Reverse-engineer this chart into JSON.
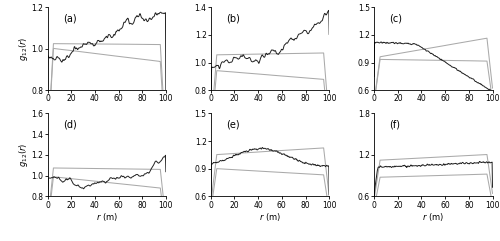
{
  "subplots": [
    {
      "label": "(a)",
      "ylim": [
        0.8,
        1.2
      ],
      "yticks": [
        0.8,
        1.0,
        1.2
      ]
    },
    {
      "label": "(b)",
      "ylim": [
        0.8,
        1.4
      ],
      "yticks": [
        0.8,
        1.0,
        1.2,
        1.4
      ]
    },
    {
      "label": "(c)",
      "ylim": [
        0.6,
        1.5
      ],
      "yticks": [
        0.6,
        0.9,
        1.2,
        1.5
      ]
    },
    {
      "label": "(d)",
      "ylim": [
        0.8,
        1.6
      ],
      "yticks": [
        0.8,
        1.0,
        1.2,
        1.4,
        1.6
      ]
    },
    {
      "label": "(e)",
      "ylim": [
        0.6,
        1.5
      ],
      "yticks": [
        0.6,
        0.9,
        1.2,
        1.5
      ]
    },
    {
      "label": "(f)",
      "ylim": [
        0.6,
        1.8
      ],
      "yticks": [
        0.6,
        1.2,
        1.8
      ]
    }
  ],
  "xlim": [
    0,
    100
  ],
  "xticks": [
    0,
    20,
    40,
    60,
    80,
    100
  ],
  "line_color_dark": "#222222",
  "line_color_light": "#aaaaaa"
}
